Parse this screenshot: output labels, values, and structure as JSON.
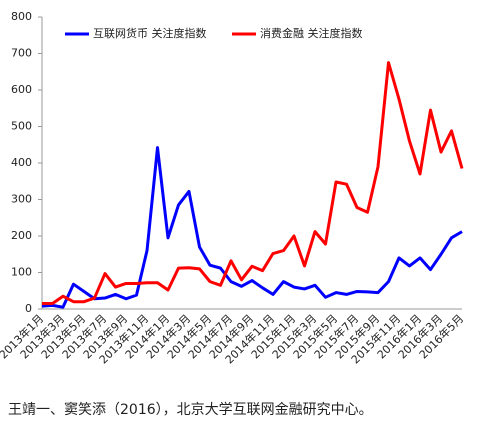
{
  "chart_data": {
    "type": "line",
    "categories": [
      "2013年1月",
      null,
      "2013年3月",
      null,
      "2013年5月",
      null,
      "2013年7月",
      null,
      "2013年9月",
      null,
      "2013年11月",
      null,
      "2014年1月",
      null,
      "2014年3月",
      null,
      "2014年5月",
      null,
      "2014年7月",
      null,
      "2014年9月",
      null,
      "2014年11月",
      null,
      "2015年1月",
      null,
      "2015年3月",
      null,
      "2015年5月",
      null,
      "2015年7月",
      null,
      "2015年9月",
      null,
      "2015年11月",
      null,
      "2016年1月",
      null,
      "2016年3月",
      null,
      "2016年5月"
    ],
    "series": [
      {
        "name": "互联网货币 关注度指数",
        "color": "#0000ff",
        "values": [
          8,
          10,
          5,
          68,
          48,
          28,
          30,
          40,
          28,
          38,
          160,
          442,
          195,
          285,
          322,
          170,
          120,
          112,
          75,
          62,
          78,
          58,
          40,
          75,
          60,
          55,
          65,
          32,
          45,
          40,
          48,
          47,
          45,
          75,
          140,
          118,
          140,
          108,
          150,
          195,
          212
        ]
      },
      {
        "name": "消费金融 关注度指数",
        "color": "#ff0000",
        "values": [
          15,
          15,
          35,
          20,
          20,
          30,
          97,
          60,
          70,
          70,
          72,
          72,
          52,
          112,
          113,
          110,
          75,
          65,
          132,
          80,
          117,
          105,
          152,
          160,
          200,
          118,
          212,
          178,
          348,
          342,
          278,
          265,
          390,
          675,
          575,
          460,
          370,
          545,
          430,
          488,
          385
        ]
      }
    ],
    "ylim": [
      0,
      800
    ],
    "yticks": [
      0,
      100,
      200,
      300,
      400,
      500,
      600,
      700,
      800
    ],
    "legend": "top",
    "source": "王靖一、窦笑添（2016），北京大学互联网金融研究中心。"
  }
}
